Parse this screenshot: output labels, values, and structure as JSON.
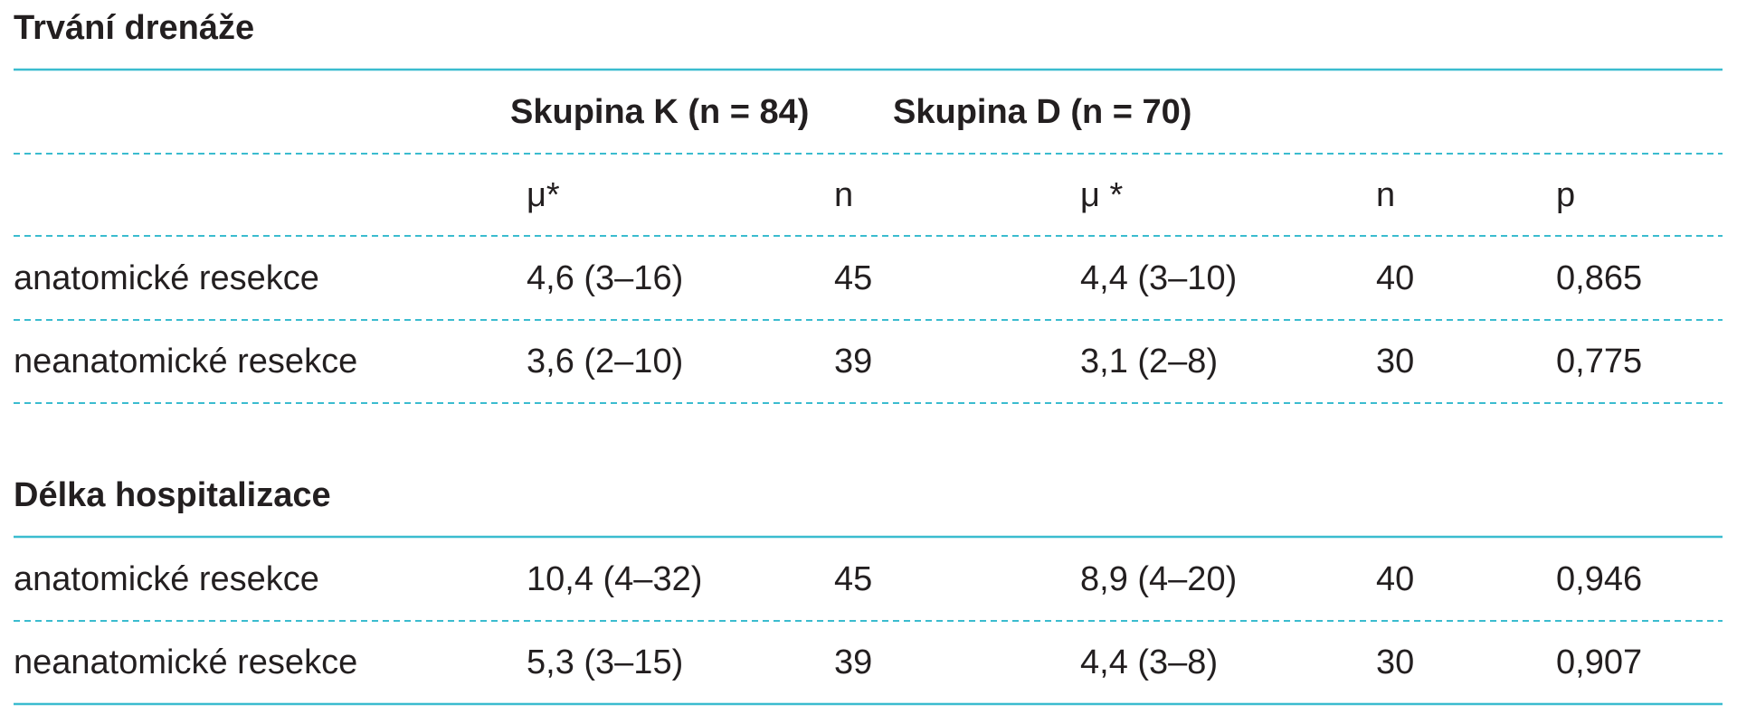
{
  "sections": [
    {
      "title": "Trvání drenáže",
      "groups": [
        "Skupina K (n = 84)",
        "Skupina D (n = 70)"
      ],
      "columns": [
        "μ*",
        "n",
        "μ *",
        "n",
        "p"
      ],
      "rows": [
        [
          "anatomické resekce",
          "4,6 (3–16)",
          "45",
          "4,4 (3–10)",
          "40",
          "0,865"
        ],
        [
          "neanatomické resekce",
          "3,6 (2–10)",
          "39",
          "3,1 (2–8)",
          "30",
          "0,775"
        ]
      ]
    },
    {
      "title": "Délka hospitalizace",
      "rows": [
        [
          "anatomické resekce",
          "10,4 (4–32)",
          "45",
          "8,9 (4–20)",
          "40",
          "0,946"
        ],
        [
          "neanatomické resekce",
          "5,3 (3–15)",
          "39",
          "4,4 (3–8)",
          "30",
          "0,907"
        ]
      ]
    }
  ]
}
